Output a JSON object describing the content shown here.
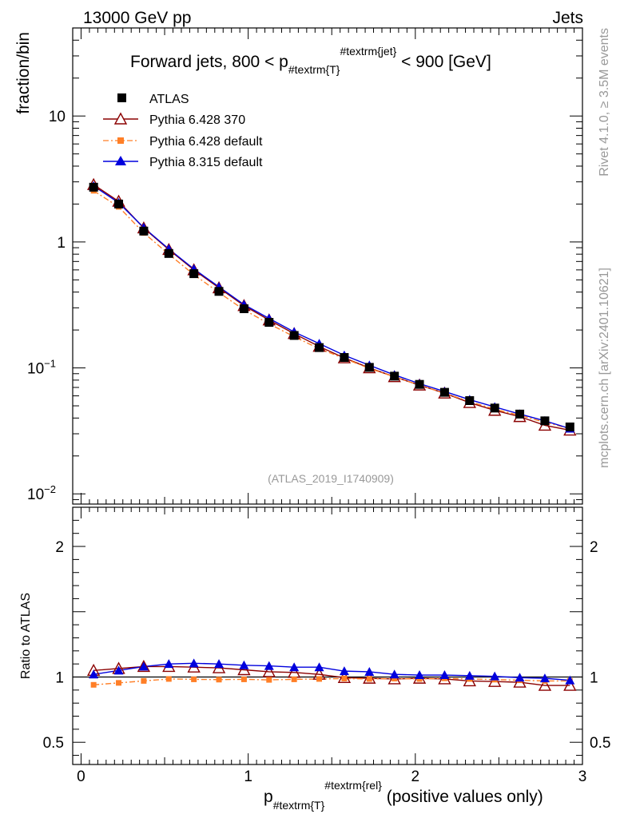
{
  "header": {
    "left": "13000 GeV pp",
    "right": "Jets"
  },
  "side_labels": {
    "top": "Rivet 4.1.0, ≥ 3.5M events",
    "bottom": "mcplots.cern.ch [arXiv:2401.10621]"
  },
  "chart_data": {
    "type": "line",
    "title": {
      "main": "Forward jets, 800 < p",
      "sub": "#textrm{T}",
      "sup": "#textrm{jet}",
      "tail": " < 900 [GeV]"
    },
    "analysis_id": "(ATLAS_2019_I1740909)",
    "xlabel": {
      "main": "p",
      "sub": "#textrm{T}",
      "sup": "#textrm{rel}",
      "tail": " (positive values only)"
    },
    "xlim": [
      -0.05,
      3.0
    ],
    "x_ticks": [
      "0",
      "1",
      "2",
      "3"
    ],
    "x_tick_values": [
      0,
      1,
      2,
      3
    ],
    "x": [
      0.075,
      0.225,
      0.375,
      0.525,
      0.675,
      0.825,
      0.975,
      1.125,
      1.275,
      1.425,
      1.575,
      1.725,
      1.875,
      2.025,
      2.175,
      2.325,
      2.475,
      2.625,
      2.775,
      2.925
    ],
    "main_panel": {
      "ylabel": "fraction/bin",
      "yscale": "log",
      "ylim": [
        0.0083,
        50
      ],
      "y_tick_labels": [
        {
          "value": 10,
          "base": "10",
          "exp": ""
        },
        {
          "value": 1,
          "base": "1",
          "exp": ""
        },
        {
          "value": 0.1,
          "base": "10",
          "exp": "−1"
        },
        {
          "value": 0.01,
          "base": "10",
          "exp": "−2"
        }
      ]
    },
    "ratio_panel": {
      "ylabel": "Ratio to ATLAS",
      "ylim": [
        0.33,
        2.3
      ],
      "y_ticks": [
        {
          "value": 2,
          "label": "2"
        },
        {
          "value": 1,
          "label": "1"
        },
        {
          "value": 0.5,
          "label": "0.5"
        }
      ]
    },
    "series": [
      {
        "name": "ATLAS",
        "color": "#000000",
        "marker": "square",
        "line": "none",
        "values": [
          2.72,
          2.0,
          1.22,
          0.81,
          0.56,
          0.405,
          0.295,
          0.23,
          0.181,
          0.145,
          0.121,
          0.101,
          0.086,
          0.074,
          0.064,
          0.055,
          0.048,
          0.043,
          0.038,
          0.034
        ],
        "ratio": [
          1,
          1,
          1,
          1,
          1,
          1,
          1,
          1,
          1,
          1,
          1,
          1,
          1,
          1,
          1,
          1,
          1,
          1,
          1,
          1
        ]
      },
      {
        "name": "Pythia 6.428 370",
        "color": "#8b0000",
        "marker": "open-triangle",
        "line": "solid",
        "values": [
          2.85,
          2.1,
          1.29,
          0.87,
          0.6,
          0.432,
          0.312,
          0.24,
          0.187,
          0.148,
          0.12,
          0.1,
          0.085,
          0.073,
          0.063,
          0.053,
          0.046,
          0.041,
          0.035,
          0.032
        ],
        "ratio": [
          1.05,
          1.065,
          1.08,
          1.08,
          1.075,
          1.07,
          1.055,
          1.04,
          1.035,
          1.02,
          0.995,
          0.99,
          0.985,
          0.99,
          0.985,
          0.97,
          0.965,
          0.96,
          0.935,
          0.935
        ]
      },
      {
        "name": "Pythia 6.428 default",
        "color": "#ff7f27",
        "marker": "square",
        "line": "dashdot",
        "values": [
          2.55,
          1.9,
          1.18,
          0.8,
          0.55,
          0.397,
          0.289,
          0.224,
          0.177,
          0.142,
          0.119,
          0.099,
          0.085,
          0.073,
          0.063,
          0.054,
          0.047,
          0.042,
          0.037,
          0.033
        ],
        "ratio": [
          0.94,
          0.955,
          0.97,
          0.985,
          0.982,
          0.98,
          0.982,
          0.978,
          0.982,
          0.985,
          0.988,
          0.985,
          0.988,
          0.985,
          0.99,
          0.985,
          0.98,
          0.975,
          0.97,
          0.97
        ]
      },
      {
        "name": "Pythia 8.315 default",
        "color": "#0000dd",
        "marker": "filled-triangle",
        "line": "solid",
        "values": [
          2.78,
          2.05,
          1.3,
          0.88,
          0.61,
          0.44,
          0.318,
          0.247,
          0.193,
          0.156,
          0.126,
          0.105,
          0.088,
          0.075,
          0.065,
          0.056,
          0.049,
          0.043,
          0.038,
          0.033
        ],
        "ratio": [
          1.02,
          1.05,
          1.08,
          1.1,
          1.105,
          1.1,
          1.09,
          1.085,
          1.075,
          1.075,
          1.045,
          1.04,
          1.02,
          1.015,
          1.015,
          1.01,
          1.005,
          0.995,
          0.99,
          0.975
        ]
      }
    ]
  }
}
